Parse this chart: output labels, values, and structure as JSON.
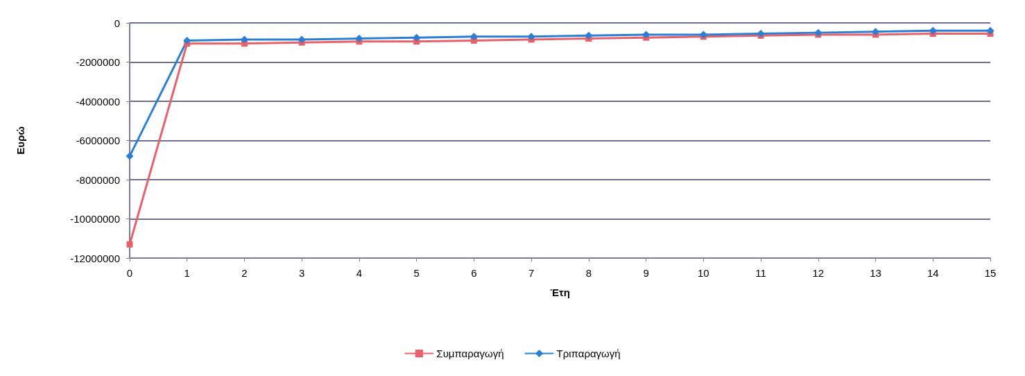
{
  "chart_data": {
    "type": "line",
    "xlabel": "Έτη",
    "ylabel": "Ευρώ",
    "x": [
      0,
      1,
      2,
      3,
      4,
      5,
      6,
      7,
      8,
      9,
      10,
      11,
      12,
      13,
      14,
      15
    ],
    "xlim": [
      0,
      15
    ],
    "xticks": [
      0,
      1,
      2,
      3,
      4,
      5,
      6,
      7,
      8,
      9,
      10,
      11,
      12,
      13,
      14,
      15
    ],
    "ylim": [
      -12000000,
      0
    ],
    "yticks": [
      -12000000,
      -10000000,
      -8000000,
      -6000000,
      -4000000,
      -2000000,
      0
    ],
    "grid": "y",
    "legend": "bottom",
    "line_style": "solid",
    "series": [
      {
        "name": "Συμπαραγωγή",
        "color": "#e8606a",
        "marker": "square",
        "values": [
          -11300000,
          -1050000,
          -1050000,
          -1000000,
          -950000,
          -950000,
          -900000,
          -850000,
          -800000,
          -750000,
          -700000,
          -650000,
          -600000,
          -600000,
          -550000,
          -550000
        ]
      },
      {
        "name": "Τριπαραγωγή",
        "color": "#2a7fd4",
        "marker": "diamond",
        "values": [
          -6800000,
          -900000,
          -850000,
          -850000,
          -800000,
          -750000,
          -700000,
          -700000,
          -650000,
          -600000,
          -600000,
          -550000,
          -500000,
          -450000,
          -400000,
          -400000
        ]
      }
    ]
  }
}
